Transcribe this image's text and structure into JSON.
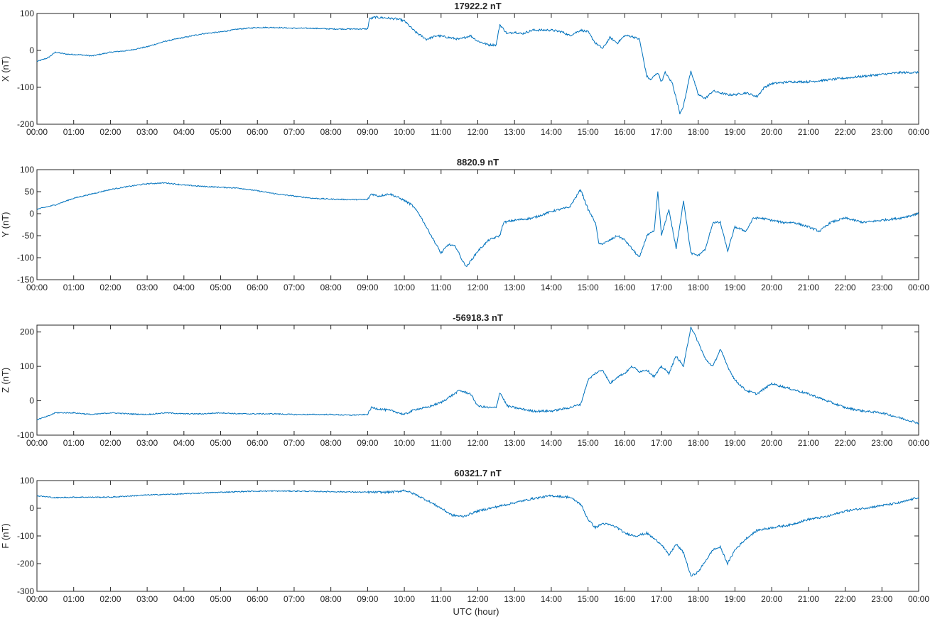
{
  "figure": {
    "xlabel": "UTC (hour)",
    "line_color": "#0072BD",
    "axis_color": "#262626"
  },
  "chart_data": [
    {
      "type": "line",
      "title": "17922.2 nT",
      "ylabel": "X (nT)",
      "xlabel": "",
      "xlim": [
        0,
        24
      ],
      "ylim": [
        -200,
        100
      ],
      "yticks": [
        -200,
        -100,
        0,
        100
      ],
      "xticks": [
        "00:00",
        "01:00",
        "02:00",
        "03:00",
        "04:00",
        "05:00",
        "06:00",
        "07:00",
        "08:00",
        "09:00",
        "10:00",
        "11:00",
        "12:00",
        "13:00",
        "14:00",
        "15:00",
        "16:00",
        "17:00",
        "18:00",
        "19:00",
        "20:00",
        "21:00",
        "22:00",
        "23:00",
        "00:00"
      ],
      "grid": false,
      "series": [
        {
          "x": [
            0,
            0.3,
            0.5,
            0.8,
            1.2,
            1.5,
            2,
            2.5,
            3,
            3.5,
            4,
            4.5,
            5,
            5.5,
            6,
            6.5,
            7,
            7.5,
            8,
            8.5,
            9,
            9.05,
            9.2,
            9.5,
            9.8,
            10,
            10.3,
            10.6,
            10.9,
            11.2,
            11.5,
            11.8,
            12,
            12.3,
            12.5,
            12.6,
            12.8,
            13,
            13.2,
            13.5,
            14,
            14.3,
            14.5,
            14.8,
            15,
            15.2,
            15.4,
            15.6,
            15.8,
            16,
            16.2,
            16.4,
            16.6,
            16.7,
            16.9,
            17,
            17.1,
            17.3,
            17.5,
            17.6,
            17.8,
            18,
            18.2,
            18.4,
            18.6,
            18.8,
            19,
            19.3,
            19.6,
            19.8,
            20,
            20.5,
            21,
            21.5,
            22,
            22.5,
            23,
            23.5,
            24
          ],
          "y": [
            -30,
            -20,
            -5,
            -10,
            -12,
            -15,
            -5,
            0,
            10,
            25,
            35,
            45,
            50,
            58,
            62,
            62,
            60,
            60,
            58,
            58,
            58,
            85,
            90,
            88,
            85,
            80,
            50,
            30,
            40,
            35,
            30,
            40,
            25,
            15,
            15,
            70,
            45,
            50,
            45,
            55,
            55,
            50,
            40,
            55,
            50,
            20,
            5,
            35,
            20,
            40,
            38,
            30,
            -70,
            -80,
            -60,
            -85,
            -60,
            -90,
            -170,
            -150,
            -55,
            -120,
            -130,
            -110,
            -115,
            -120,
            -120,
            -115,
            -125,
            -100,
            -90,
            -85,
            -85,
            -80,
            -75,
            -70,
            -65,
            -60,
            -60
          ]
        }
      ]
    },
    {
      "type": "line",
      "title": "8820.9 nT",
      "ylabel": "Y (nT)",
      "xlabel": "",
      "xlim": [
        0,
        24
      ],
      "ylim": [
        -150,
        100
      ],
      "yticks": [
        -150,
        -100,
        -50,
        0,
        50,
        100
      ],
      "xticks": [
        "00:00",
        "01:00",
        "02:00",
        "03:00",
        "04:00",
        "05:00",
        "06:00",
        "07:00",
        "08:00",
        "09:00",
        "10:00",
        "11:00",
        "12:00",
        "13:00",
        "14:00",
        "15:00",
        "16:00",
        "17:00",
        "18:00",
        "19:00",
        "20:00",
        "21:00",
        "22:00",
        "23:00",
        "00:00"
      ],
      "grid": false,
      "series": [
        {
          "x": [
            0,
            0.5,
            1,
            1.5,
            2,
            2.5,
            3,
            3.5,
            4,
            4.5,
            5,
            5.5,
            6,
            6.5,
            7,
            7.5,
            8,
            8.5,
            9,
            9.1,
            9.3,
            9.6,
            9.8,
            10,
            10.2,
            10.4,
            10.6,
            10.8,
            11,
            11.2,
            11.4,
            11.6,
            11.7,
            12,
            12.3,
            12.6,
            12.7,
            13,
            13.5,
            14,
            14.5,
            14.8,
            15,
            15.2,
            15.3,
            15.5,
            15.8,
            16,
            16.2,
            16.4,
            16.6,
            16.8,
            16.9,
            17,
            17.2,
            17.4,
            17.6,
            17.8,
            18,
            18.2,
            18.4,
            18.6,
            18.8,
            19,
            19.3,
            19.5,
            19.7,
            20,
            20.3,
            20.6,
            21,
            21.3,
            21.6,
            22,
            22.5,
            23,
            23.5,
            24
          ],
          "y": [
            10,
            20,
            35,
            45,
            55,
            62,
            68,
            70,
            65,
            62,
            60,
            58,
            52,
            45,
            40,
            35,
            33,
            32,
            32,
            45,
            40,
            45,
            38,
            30,
            20,
            0,
            -30,
            -60,
            -90,
            -70,
            -75,
            -110,
            -120,
            -85,
            -60,
            -50,
            -20,
            -15,
            -10,
            5,
            15,
            55,
            10,
            -20,
            -70,
            -65,
            -50,
            -60,
            -80,
            -100,
            -50,
            -40,
            50,
            -50,
            10,
            -80,
            30,
            -90,
            -95,
            -80,
            -20,
            -20,
            -85,
            -30,
            -40,
            -10,
            -10,
            -15,
            -20,
            -20,
            -30,
            -40,
            -20,
            -10,
            -20,
            -15,
            -10,
            0
          ]
        }
      ]
    },
    {
      "type": "line",
      "title": "-56918.3 nT",
      "ylabel": "Z (nT)",
      "xlabel": "",
      "xlim": [
        0,
        24
      ],
      "ylim": [
        -100,
        220
      ],
      "yticks": [
        -100,
        0,
        100,
        200
      ],
      "xticks": [
        "00:00",
        "01:00",
        "02:00",
        "03:00",
        "04:00",
        "05:00",
        "06:00",
        "07:00",
        "08:00",
        "09:00",
        "10:00",
        "11:00",
        "12:00",
        "13:00",
        "14:00",
        "15:00",
        "16:00",
        "17:00",
        "18:00",
        "19:00",
        "20:00",
        "21:00",
        "22:00",
        "23:00",
        "00:00"
      ],
      "grid": false,
      "series": [
        {
          "x": [
            0,
            0.3,
            0.5,
            1,
            1.5,
            2,
            2.5,
            3,
            3.5,
            4,
            4.5,
            5,
            5.5,
            6,
            6.5,
            7,
            7.5,
            8,
            8.5,
            9,
            9.1,
            9.4,
            9.7,
            10,
            10.3,
            10.6,
            11,
            11.5,
            11.8,
            12,
            12.3,
            12.5,
            12.6,
            12.8,
            13,
            13.5,
            14,
            14.5,
            14.8,
            15,
            15.2,
            15.4,
            15.6,
            15.8,
            16,
            16.2,
            16.4,
            16.6,
            16.8,
            17,
            17.2,
            17.4,
            17.6,
            17.8,
            18,
            18.2,
            18.4,
            18.6,
            18.8,
            19,
            19.3,
            19.6,
            20,
            20.5,
            21,
            21.5,
            22,
            22.5,
            23,
            23.5,
            24
          ],
          "y": [
            -55,
            -45,
            -35,
            -35,
            -40,
            -35,
            -38,
            -40,
            -35,
            -38,
            -38,
            -35,
            -38,
            -38,
            -38,
            -40,
            -40,
            -40,
            -42,
            -40,
            -20,
            -25,
            -30,
            -40,
            -25,
            -20,
            -5,
            30,
            20,
            -15,
            -20,
            -20,
            25,
            -15,
            -20,
            -30,
            -30,
            -20,
            -10,
            60,
            80,
            90,
            50,
            70,
            80,
            100,
            85,
            90,
            70,
            100,
            80,
            130,
            100,
            215,
            170,
            120,
            100,
            150,
            100,
            60,
            30,
            20,
            50,
            35,
            20,
            0,
            -20,
            -30,
            -35,
            -50,
            -65
          ]
        }
      ]
    },
    {
      "type": "line",
      "title": "60321.7 nT",
      "ylabel": "F (nT)",
      "xlabel": "UTC (hour)",
      "xlim": [
        0,
        24
      ],
      "ylim": [
        -300,
        100
      ],
      "yticks": [
        -300,
        -200,
        -100,
        0,
        100
      ],
      "xticks": [
        "00:00",
        "01:00",
        "02:00",
        "03:00",
        "04:00",
        "05:00",
        "06:00",
        "07:00",
        "08:00",
        "09:00",
        "10:00",
        "11:00",
        "12:00",
        "13:00",
        "14:00",
        "15:00",
        "16:00",
        "17:00",
        "18:00",
        "19:00",
        "20:00",
        "21:00",
        "22:00",
        "23:00",
        "00:00"
      ],
      "grid": false,
      "series": [
        {
          "x": [
            0,
            0.5,
            1,
            2,
            3,
            4,
            5,
            6,
            7,
            8,
            9,
            9.5,
            9.8,
            10,
            10.3,
            10.6,
            11,
            11.3,
            11.6,
            12,
            12.5,
            13,
            13.5,
            14,
            14.5,
            14.8,
            15,
            15.2,
            15.4,
            15.6,
            15.8,
            16,
            16.3,
            16.6,
            16.8,
            17,
            17.2,
            17.4,
            17.6,
            17.8,
            18,
            18.2,
            18.4,
            18.6,
            18.8,
            19,
            19.3,
            19.6,
            20,
            20.5,
            21,
            21.5,
            22,
            22.5,
            23,
            23.5,
            24
          ],
          "y": [
            45,
            38,
            40,
            40,
            48,
            52,
            58,
            62,
            62,
            60,
            58,
            58,
            60,
            65,
            50,
            30,
            0,
            -25,
            -30,
            -10,
            5,
            20,
            35,
            45,
            40,
            15,
            -40,
            -70,
            -55,
            -60,
            -70,
            -90,
            -100,
            -90,
            -110,
            -130,
            -170,
            -130,
            -160,
            -245,
            -230,
            -190,
            -150,
            -140,
            -200,
            -150,
            -110,
            -80,
            -70,
            -60,
            -40,
            -30,
            -10,
            0,
            10,
            20,
            40
          ]
        }
      ]
    }
  ]
}
